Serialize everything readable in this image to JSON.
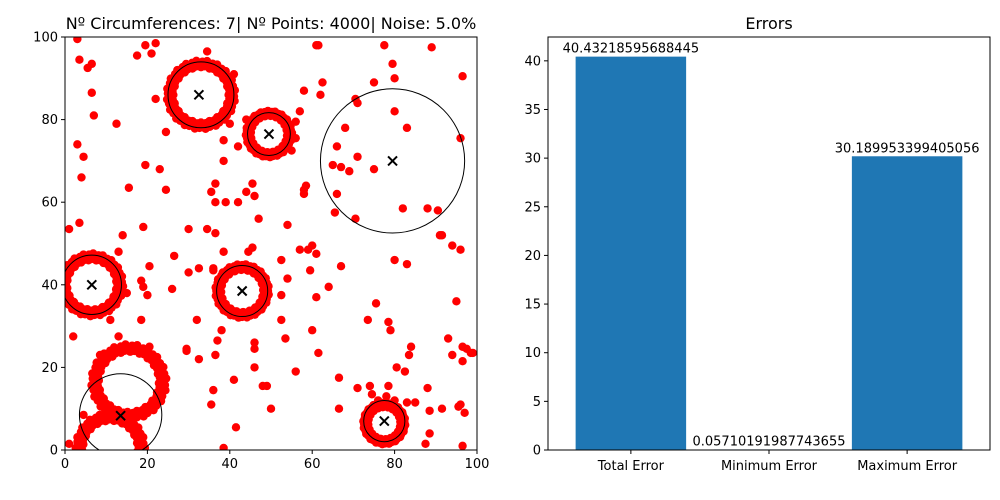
{
  "chart_data": [
    {
      "type": "scatter",
      "title": "Nº Circumferences: 7| Nº Points: 4000| Noise: 5.0%",
      "xlabel": "",
      "ylabel": "",
      "xlim": [
        0,
        100
      ],
      "ylim": [
        0,
        100
      ],
      "xticks": [
        0,
        20,
        40,
        60,
        80,
        100
      ],
      "yticks": [
        0,
        20,
        40,
        60,
        80,
        100
      ],
      "colors": {
        "points": "#ff0000",
        "circles": "#000000",
        "centers": "#000000"
      },
      "rings": [
        {
          "cx": 33,
          "cy": 86,
          "r": 7.5,
          "thickness": 1.6
        },
        {
          "cx": 49.5,
          "cy": 76.5,
          "r": 5,
          "thickness": 1.2
        },
        {
          "cx": 6.5,
          "cy": 40,
          "r": 6.8,
          "thickness": 1.6
        },
        {
          "cx": 43,
          "cy": 38.5,
          "r": 5.8,
          "thickness": 1.4
        },
        {
          "cx": 15.5,
          "cy": 16.5,
          "r": 8.2,
          "thickness": 1.8
        },
        {
          "cx": 11,
          "cy": 0.5,
          "r": 7.5,
          "thickness": 1.8
        },
        {
          "cx": 77.5,
          "cy": 6.5,
          "r": 4.5,
          "thickness": 1.2
        }
      ],
      "fitted_circles": [
        {
          "cx": 33,
          "cy": 86,
          "r": 8
        },
        {
          "cx": 49.5,
          "cy": 76.5,
          "r": 5.2
        },
        {
          "cx": 79.5,
          "cy": 70,
          "r": 17.5
        },
        {
          "cx": 6.5,
          "cy": 40,
          "r": 7.2
        },
        {
          "cx": 43,
          "cy": 38.5,
          "r": 6.2
        },
        {
          "cx": 13.5,
          "cy": 8.5,
          "r": 10
        },
        {
          "cx": 77.5,
          "cy": 7,
          "r": 5
        }
      ],
      "centers": [
        {
          "x": 32.5,
          "y": 86
        },
        {
          "x": 49.5,
          "y": 76.5
        },
        {
          "x": 79.5,
          "y": 70
        },
        {
          "x": 6.5,
          "y": 40
        },
        {
          "x": 43,
          "y": 38.5
        },
        {
          "x": 13.5,
          "y": 8.3
        },
        {
          "x": 77.5,
          "y": 7
        }
      ],
      "noise_points": [
        [
          3,
          99.5
        ],
        [
          22,
          98.5
        ],
        [
          19.5,
          98
        ],
        [
          34.5,
          96.5
        ],
        [
          3.5,
          94.5
        ],
        [
          6.5,
          93.5
        ],
        [
          5.5,
          92.5
        ],
        [
          17.5,
          95.5
        ],
        [
          21,
          96
        ],
        [
          41,
          91
        ],
        [
          61,
          98
        ],
        [
          61.5,
          98
        ],
        [
          77.5,
          98
        ],
        [
          89,
          97.5
        ],
        [
          96.5,
          90.5
        ],
        [
          79.5,
          93.5
        ],
        [
          80,
          90
        ],
        [
          75,
          89
        ],
        [
          62.5,
          89
        ],
        [
          62,
          86
        ],
        [
          22,
          85
        ],
        [
          6.5,
          86.5
        ],
        [
          7,
          81
        ],
        [
          12.5,
          79
        ],
        [
          24.5,
          77
        ],
        [
          29,
          79.5
        ],
        [
          40,
          79
        ],
        [
          42,
          73.5
        ],
        [
          38.5,
          70
        ],
        [
          38.5,
          75
        ],
        [
          46,
          80
        ],
        [
          44,
          80
        ],
        [
          56,
          79.5
        ],
        [
          56,
          75.5
        ],
        [
          55,
          72.5
        ],
        [
          57,
          82
        ],
        [
          58,
          87
        ],
        [
          70.5,
          85
        ],
        [
          71,
          84
        ],
        [
          68,
          78
        ],
        [
          66,
          73.5
        ],
        [
          71,
          71
        ],
        [
          67,
          68.5
        ],
        [
          69,
          67.5
        ],
        [
          65,
          69
        ],
        [
          75,
          68
        ],
        [
          83,
          78
        ],
        [
          80,
          82
        ],
        [
          96,
          75.5
        ],
        [
          3,
          74
        ],
        [
          4.5,
          71
        ],
        [
          4,
          66
        ],
        [
          19.5,
          69
        ],
        [
          23,
          68
        ],
        [
          24.5,
          63
        ],
        [
          15.5,
          63.5
        ],
        [
          45.5,
          64.5
        ],
        [
          44,
          62.5
        ],
        [
          46,
          61.5
        ],
        [
          42,
          60
        ],
        [
          39,
          60
        ],
        [
          35.5,
          62.5
        ],
        [
          36.5,
          64.5
        ],
        [
          36.5,
          60
        ],
        [
          58.5,
          64
        ],
        [
          58,
          63
        ],
        [
          58,
          62
        ],
        [
          66,
          62
        ],
        [
          65.5,
          57.5
        ],
        [
          70.5,
          56
        ],
        [
          82,
          58.5
        ],
        [
          88,
          58.5
        ],
        [
          90.5,
          58
        ],
        [
          1,
          53.5
        ],
        [
          3.5,
          55
        ],
        [
          14,
          52
        ],
        [
          19,
          54
        ],
        [
          30,
          53.5
        ],
        [
          34.5,
          53.5
        ],
        [
          36.5,
          52.5
        ],
        [
          47,
          56
        ],
        [
          54,
          54.5
        ],
        [
          60,
          49.5
        ],
        [
          59,
          48.5
        ],
        [
          57,
          48.5
        ],
        [
          61,
          47.5
        ],
        [
          44.5,
          48
        ],
        [
          45.5,
          49
        ],
        [
          38.5,
          48
        ],
        [
          36,
          44
        ],
        [
          32.5,
          44
        ],
        [
          30,
          43
        ],
        [
          26.5,
          47
        ],
        [
          20.5,
          44.5
        ],
        [
          13,
          48
        ],
        [
          18.5,
          41
        ],
        [
          19,
          39.5
        ],
        [
          15,
          38
        ],
        [
          20,
          37.5
        ],
        [
          13,
          37
        ],
        [
          26,
          39
        ],
        [
          36,
          43.5
        ],
        [
          52.5,
          46
        ],
        [
          54,
          41.5
        ],
        [
          59.5,
          43.5
        ],
        [
          64,
          39.5
        ],
        [
          61,
          37
        ],
        [
          52.5,
          37.5
        ],
        [
          67,
          44.5
        ],
        [
          80,
          46
        ],
        [
          83,
          45
        ],
        [
          91,
          52
        ],
        [
          91.5,
          52
        ],
        [
          94,
          49.5
        ],
        [
          96,
          48.5
        ],
        [
          95,
          36
        ],
        [
          75.5,
          35.5
        ],
        [
          73.5,
          31.5
        ],
        [
          78.5,
          31
        ],
        [
          79,
          29
        ],
        [
          93,
          27
        ],
        [
          96.5,
          25
        ],
        [
          97.5,
          24.5
        ],
        [
          99,
          23.5
        ],
        [
          98.5,
          23.5
        ],
        [
          94,
          23
        ],
        [
          96.5,
          21.5
        ],
        [
          84,
          25
        ],
        [
          83.5,
          23
        ],
        [
          80.5,
          20
        ],
        [
          82.5,
          19
        ],
        [
          88,
          15
        ],
        [
          2,
          27.5
        ],
        [
          8.5,
          23
        ],
        [
          13,
          27.5
        ],
        [
          11,
          31.5
        ],
        [
          18.5,
          31.5
        ],
        [
          20.5,
          25
        ],
        [
          24,
          18
        ],
        [
          23.5,
          16.5
        ],
        [
          24,
          15
        ],
        [
          32,
          31.5
        ],
        [
          29.5,
          24.5
        ],
        [
          29.5,
          24
        ],
        [
          32.5,
          22
        ],
        [
          37,
          26.5
        ],
        [
          36.5,
          23
        ],
        [
          38,
          29
        ],
        [
          35.5,
          11
        ],
        [
          36,
          14.5
        ],
        [
          41,
          17
        ],
        [
          46,
          20
        ],
        [
          46,
          24.5
        ],
        [
          48,
          15.5
        ],
        [
          49,
          15.5
        ],
        [
          46,
          26
        ],
        [
          52.5,
          31.5
        ],
        [
          56,
          19
        ],
        [
          53.5,
          27
        ],
        [
          60,
          29
        ],
        [
          61.5,
          23.5
        ],
        [
          66.5,
          17.5
        ],
        [
          71,
          15
        ],
        [
          74,
          15.5
        ],
        [
          74.5,
          13.5
        ],
        [
          76,
          12
        ],
        [
          78.5,
          15.5
        ],
        [
          78,
          13
        ],
        [
          80,
          12
        ],
        [
          83,
          11.5
        ],
        [
          82,
          8.5
        ],
        [
          85,
          11.5
        ],
        [
          88.5,
          9.5
        ],
        [
          91.5,
          10
        ],
        [
          95.5,
          10.5
        ],
        [
          96,
          11
        ],
        [
          97,
          9
        ],
        [
          88.5,
          4
        ],
        [
          87.5,
          1.5
        ],
        [
          96.5,
          1
        ],
        [
          66.5,
          10
        ],
        [
          50,
          10
        ],
        [
          41.5,
          5.5
        ],
        [
          38.5,
          0.5
        ],
        [
          4.5,
          8.5
        ],
        [
          4,
          3
        ],
        [
          4,
          1.5
        ],
        [
          1,
          1.5
        ]
      ]
    },
    {
      "type": "bar",
      "title": "Errors",
      "xlabel": "",
      "ylabel": "",
      "categories": [
        "Total Error",
        "Minimum Error",
        "Maximum Error"
      ],
      "values": [
        40.43218595688445,
        0.05710191987743655,
        30.189953399405056
      ],
      "value_labels": [
        "40.43218595688445",
        "0.05710191987743655",
        "30.189953399405056"
      ],
      "ylim": [
        0,
        42.45
      ],
      "yticks": [
        0,
        5,
        10,
        15,
        20,
        25,
        30,
        35,
        40
      ],
      "bar_color": "#1f77b4"
    }
  ]
}
